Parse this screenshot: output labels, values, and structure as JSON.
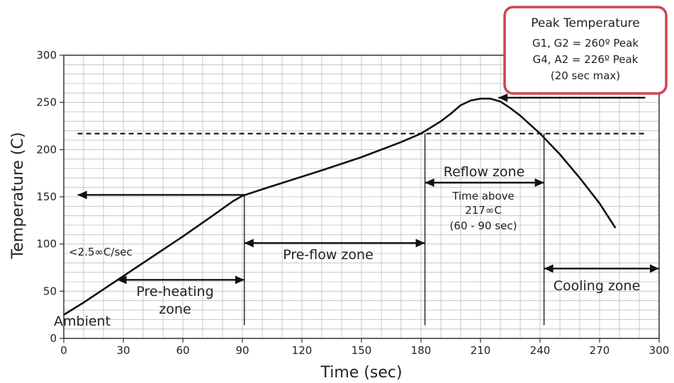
{
  "chart_data": {
    "type": "line",
    "xlabel": "Time (sec)",
    "ylabel": "Temperature (C)",
    "xlim": [
      0,
      300
    ],
    "ylim": [
      0,
      300
    ],
    "x_ticks": [
      "0",
      "30",
      "60",
      "90",
      "120",
      "150",
      "180",
      "210",
      "240",
      "270",
      "300"
    ],
    "y_ticks": [
      "0",
      "50",
      "100",
      "150",
      "200",
      "250",
      "300"
    ],
    "grid": true,
    "series": [
      {
        "x": [
          0,
          10,
          20,
          30,
          45,
          60,
          75,
          85,
          90,
          100,
          115,
          130,
          150,
          170,
          180,
          190,
          195,
          200,
          205,
          210,
          215,
          220,
          225,
          230,
          240,
          250,
          260,
          270,
          278
        ],
        "y": [
          25,
          38,
          52,
          66,
          87,
          108,
          130,
          145,
          151,
          158,
          168,
          178,
          192,
          208,
          217,
          230,
          238,
          247,
          252,
          254,
          254,
          251,
          244,
          236,
          217,
          195,
          170,
          143,
          117
        ]
      }
    ],
    "reference_line": {
      "y": 217,
      "style": "dashed"
    },
    "labels": {
      "ambient": "Ambient",
      "ramp": "<2.5∞C/sec",
      "preheat_line1": "Pre-heating",
      "preheat_line2": "zone",
      "preflow": "Pre-flow zone",
      "reflow": "Reflow zone",
      "time_above_1": "Time above",
      "time_above_2": "217∞C",
      "time_above_3": "(60 - 90 sec)",
      "cooling": "Cooling zone"
    },
    "peak_box": {
      "title": "Peak Temperature",
      "line1": "G1, G2 = 260º Peak",
      "line2": "G4, A2 = 226º Peak",
      "line3": "(20 sec max)",
      "border_color": "#d0434f"
    }
  }
}
